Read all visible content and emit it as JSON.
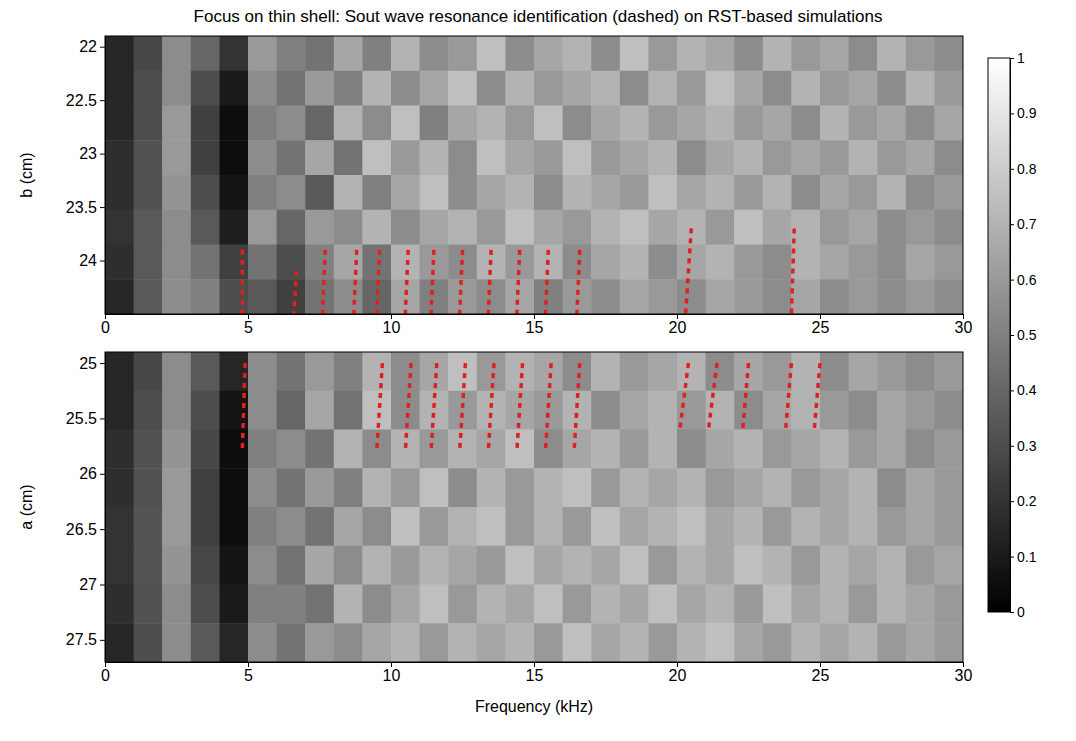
{
  "chart_data": [
    {
      "type": "heatmap",
      "title": "Focus on thin shell: Sout wave resonance identification (dashed) on RST-based simulations",
      "ylabel": "b (cm)",
      "xlim": [
        0,
        30
      ],
      "xticks": [
        0,
        5,
        10,
        15,
        20,
        25,
        30
      ],
      "ylim": [
        21.9,
        24.5
      ],
      "yticks": [
        22,
        22.5,
        23,
        23.5,
        24
      ],
      "color_range": [
        0,
        1
      ],
      "color_ticks": [
        0,
        0.1,
        0.2,
        0.3,
        0.4,
        0.5,
        0.6,
        0.7,
        0.8,
        0.9,
        1
      ],
      "cell_x": [
        0,
        1,
        2,
        3,
        4,
        5,
        6,
        7,
        8,
        9,
        10,
        11,
        12,
        13,
        14,
        15,
        16,
        17,
        18,
        19,
        20,
        21,
        22,
        23,
        24,
        25,
        26,
        27,
        28,
        29,
        30
      ],
      "cell_y": [
        21.9,
        22.225,
        22.55,
        22.875,
        23.2,
        23.525,
        23.85,
        24.175,
        24.5
      ],
      "z": [
        [
          0.15,
          0.28,
          0.55,
          0.4,
          0.2,
          0.6,
          0.5,
          0.45,
          0.65,
          0.5,
          0.7,
          0.55,
          0.6,
          0.75,
          0.55,
          0.65,
          0.7,
          0.55,
          0.75,
          0.6,
          0.7,
          0.65,
          0.55,
          0.7,
          0.6,
          0.65,
          0.55,
          0.7,
          0.6,
          0.55
        ],
        [
          0.15,
          0.3,
          0.55,
          0.3,
          0.1,
          0.55,
          0.45,
          0.6,
          0.5,
          0.7,
          0.55,
          0.65,
          0.75,
          0.55,
          0.7,
          0.6,
          0.65,
          0.7,
          0.55,
          0.7,
          0.6,
          0.75,
          0.65,
          0.55,
          0.7,
          0.6,
          0.65,
          0.55,
          0.7,
          0.6
        ],
        [
          0.15,
          0.3,
          0.6,
          0.25,
          0.05,
          0.5,
          0.55,
          0.4,
          0.7,
          0.55,
          0.75,
          0.5,
          0.65,
          0.7,
          0.6,
          0.75,
          0.55,
          0.65,
          0.7,
          0.6,
          0.65,
          0.7,
          0.6,
          0.65,
          0.55,
          0.7,
          0.6,
          0.65,
          0.55,
          0.65
        ],
        [
          0.18,
          0.32,
          0.6,
          0.25,
          0.05,
          0.55,
          0.45,
          0.65,
          0.45,
          0.75,
          0.6,
          0.7,
          0.55,
          0.75,
          0.65,
          0.6,
          0.75,
          0.6,
          0.65,
          0.7,
          0.55,
          0.65,
          0.7,
          0.6,
          0.65,
          0.6,
          0.7,
          0.6,
          0.65,
          0.55
        ],
        [
          0.18,
          0.32,
          0.58,
          0.3,
          0.08,
          0.5,
          0.55,
          0.35,
          0.7,
          0.5,
          0.65,
          0.75,
          0.55,
          0.65,
          0.7,
          0.55,
          0.7,
          0.65,
          0.6,
          0.75,
          0.65,
          0.7,
          0.6,
          0.7,
          0.55,
          0.65,
          0.6,
          0.7,
          0.55,
          0.6
        ],
        [
          0.2,
          0.35,
          0.55,
          0.35,
          0.12,
          0.6,
          0.4,
          0.6,
          0.55,
          0.7,
          0.55,
          0.65,
          0.7,
          0.6,
          0.75,
          0.65,
          0.6,
          0.7,
          0.75,
          0.65,
          0.7,
          0.6,
          0.75,
          0.65,
          0.7,
          0.6,
          0.65,
          0.55,
          0.6,
          0.55
        ],
        [
          0.18,
          0.35,
          0.55,
          0.45,
          0.25,
          0.45,
          0.3,
          0.5,
          0.65,
          0.45,
          0.7,
          0.6,
          0.55,
          0.7,
          0.6,
          0.7,
          0.55,
          0.65,
          0.7,
          0.55,
          0.65,
          0.7,
          0.6,
          0.55,
          0.7,
          0.65,
          0.6,
          0.55,
          0.65,
          0.6
        ],
        [
          0.15,
          0.35,
          0.55,
          0.5,
          0.3,
          0.35,
          0.25,
          0.45,
          0.55,
          0.4,
          0.65,
          0.5,
          0.6,
          0.55,
          0.65,
          0.5,
          0.6,
          0.55,
          0.65,
          0.6,
          0.55,
          0.65,
          0.6,
          0.55,
          0.65,
          0.55,
          0.6,
          0.55,
          0.6,
          0.55
        ]
      ],
      "resonances": {
        "color": "#e02020",
        "line_style": "dashed",
        "lines": [
          {
            "x": [
              4.8,
              4.8
            ],
            "y": [
              23.9,
              24.5
            ]
          },
          {
            "x": [
              6.7,
              6.6
            ],
            "y": [
              24.1,
              24.5
            ]
          },
          {
            "x": [
              7.7,
              7.6
            ],
            "y": [
              23.9,
              24.5
            ]
          },
          {
            "x": [
              8.8,
              8.7
            ],
            "y": [
              23.9,
              24.5
            ]
          },
          {
            "x": [
              9.6,
              9.5
            ],
            "y": [
              23.9,
              24.5
            ]
          },
          {
            "x": [
              10.6,
              10.5
            ],
            "y": [
              23.9,
              24.5
            ]
          },
          {
            "x": [
              11.5,
              11.4
            ],
            "y": [
              23.9,
              24.5
            ]
          },
          {
            "x": [
              12.5,
              12.4
            ],
            "y": [
              23.9,
              24.5
            ]
          },
          {
            "x": [
              13.5,
              13.4
            ],
            "y": [
              23.9,
              24.5
            ]
          },
          {
            "x": [
              14.5,
              14.4
            ],
            "y": [
              23.9,
              24.5
            ]
          },
          {
            "x": [
              15.5,
              15.4
            ],
            "y": [
              23.9,
              24.5
            ]
          },
          {
            "x": [
              16.6,
              16.5
            ],
            "y": [
              23.9,
              24.5
            ]
          },
          {
            "x": [
              20.5,
              20.3
            ],
            "y": [
              23.7,
              24.5
            ]
          },
          {
            "x": [
              24.1,
              24.0
            ],
            "y": [
              23.7,
              24.5
            ]
          }
        ]
      }
    },
    {
      "type": "heatmap",
      "ylabel": "a (cm)",
      "xlabel": "Frequency (kHz)",
      "xlim": [
        0,
        30
      ],
      "xticks": [
        0,
        5,
        10,
        15,
        20,
        25,
        30
      ],
      "ylim": [
        24.9,
        27.7
      ],
      "yticks": [
        25,
        25.5,
        26,
        26.5,
        27,
        27.5
      ],
      "cell_x": [
        0,
        1,
        2,
        3,
        4,
        5,
        6,
        7,
        8,
        9,
        10,
        11,
        12,
        13,
        14,
        15,
        16,
        17,
        18,
        19,
        20,
        21,
        22,
        23,
        24,
        25,
        26,
        27,
        28,
        29,
        30
      ],
      "cell_y": [
        24.9,
        25.25,
        25.6,
        25.95,
        26.3,
        26.65,
        27.0,
        27.35,
        27.7
      ],
      "z": [
        [
          0.15,
          0.28,
          0.55,
          0.35,
          0.15,
          0.55,
          0.45,
          0.6,
          0.5,
          0.7,
          0.55,
          0.65,
          0.75,
          0.6,
          0.7,
          0.65,
          0.55,
          0.7,
          0.6,
          0.65,
          0.7,
          0.55,
          0.65,
          0.6,
          0.7,
          0.55,
          0.65,
          0.6,
          0.55,
          0.6
        ],
        [
          0.15,
          0.3,
          0.55,
          0.3,
          0.08,
          0.55,
          0.4,
          0.65,
          0.45,
          0.75,
          0.55,
          0.7,
          0.6,
          0.7,
          0.65,
          0.6,
          0.7,
          0.55,
          0.65,
          0.7,
          0.6,
          0.7,
          0.55,
          0.65,
          0.7,
          0.6,
          0.55,
          0.65,
          0.6,
          0.55
        ],
        [
          0.18,
          0.32,
          0.58,
          0.28,
          0.05,
          0.5,
          0.55,
          0.45,
          0.7,
          0.55,
          0.7,
          0.6,
          0.7,
          0.65,
          0.75,
          0.55,
          0.65,
          0.7,
          0.6,
          0.7,
          0.55,
          0.65,
          0.7,
          0.6,
          0.65,
          0.7,
          0.6,
          0.65,
          0.55,
          0.6
        ],
        [
          0.18,
          0.32,
          0.6,
          0.25,
          0.05,
          0.55,
          0.45,
          0.6,
          0.5,
          0.7,
          0.6,
          0.75,
          0.55,
          0.7,
          0.6,
          0.7,
          0.75,
          0.6,
          0.7,
          0.65,
          0.7,
          0.6,
          0.65,
          0.7,
          0.6,
          0.65,
          0.7,
          0.55,
          0.65,
          0.6
        ],
        [
          0.2,
          0.33,
          0.6,
          0.25,
          0.05,
          0.5,
          0.55,
          0.45,
          0.65,
          0.55,
          0.75,
          0.6,
          0.7,
          0.75,
          0.6,
          0.7,
          0.6,
          0.75,
          0.65,
          0.7,
          0.75,
          0.65,
          0.7,
          0.6,
          0.7,
          0.65,
          0.7,
          0.6,
          0.65,
          0.6
        ],
        [
          0.2,
          0.33,
          0.58,
          0.28,
          0.08,
          0.55,
          0.45,
          0.65,
          0.55,
          0.7,
          0.6,
          0.7,
          0.65,
          0.6,
          0.75,
          0.65,
          0.7,
          0.65,
          0.75,
          0.6,
          0.7,
          0.65,
          0.75,
          0.7,
          0.6,
          0.7,
          0.65,
          0.7,
          0.6,
          0.65
        ],
        [
          0.18,
          0.32,
          0.55,
          0.3,
          0.1,
          0.5,
          0.5,
          0.45,
          0.7,
          0.55,
          0.65,
          0.75,
          0.6,
          0.7,
          0.65,
          0.75,
          0.6,
          0.7,
          0.65,
          0.75,
          0.65,
          0.7,
          0.6,
          0.75,
          0.65,
          0.7,
          0.6,
          0.7,
          0.65,
          0.6
        ],
        [
          0.15,
          0.3,
          0.55,
          0.35,
          0.15,
          0.55,
          0.45,
          0.6,
          0.55,
          0.65,
          0.7,
          0.6,
          0.7,
          0.65,
          0.7,
          0.6,
          0.75,
          0.65,
          0.7,
          0.6,
          0.7,
          0.75,
          0.65,
          0.6,
          0.7,
          0.65,
          0.7,
          0.6,
          0.65,
          0.6
        ]
      ],
      "resonances": {
        "color": "#e02020",
        "line_style": "dashed",
        "lines": [
          {
            "x": [
              4.9,
              4.8
            ],
            "y": [
              25.0,
              25.8
            ]
          },
          {
            "x": [
              9.7,
              9.5
            ],
            "y": [
              25.0,
              25.8
            ]
          },
          {
            "x": [
              10.7,
              10.5
            ],
            "y": [
              25.0,
              25.8
            ]
          },
          {
            "x": [
              11.6,
              11.4
            ],
            "y": [
              25.0,
              25.8
            ]
          },
          {
            "x": [
              12.6,
              12.4
            ],
            "y": [
              25.0,
              25.8
            ]
          },
          {
            "x": [
              13.6,
              13.4
            ],
            "y": [
              25.0,
              25.8
            ]
          },
          {
            "x": [
              14.6,
              14.4
            ],
            "y": [
              25.0,
              25.8
            ]
          },
          {
            "x": [
              15.6,
              15.4
            ],
            "y": [
              25.0,
              25.8
            ]
          },
          {
            "x": [
              16.6,
              16.4
            ],
            "y": [
              25.0,
              25.8
            ]
          },
          {
            "x": [
              20.4,
              20.1
            ],
            "y": [
              25.0,
              25.6
            ]
          },
          {
            "x": [
              21.4,
              21.1
            ],
            "y": [
              25.0,
              25.6
            ]
          },
          {
            "x": [
              22.5,
              22.3
            ],
            "y": [
              25.0,
              25.6
            ]
          },
          {
            "x": [
              24.0,
              23.8
            ],
            "y": [
              25.0,
              25.6
            ]
          },
          {
            "x": [
              25.0,
              24.8
            ],
            "y": [
              25.0,
              25.6
            ]
          }
        ]
      }
    }
  ]
}
